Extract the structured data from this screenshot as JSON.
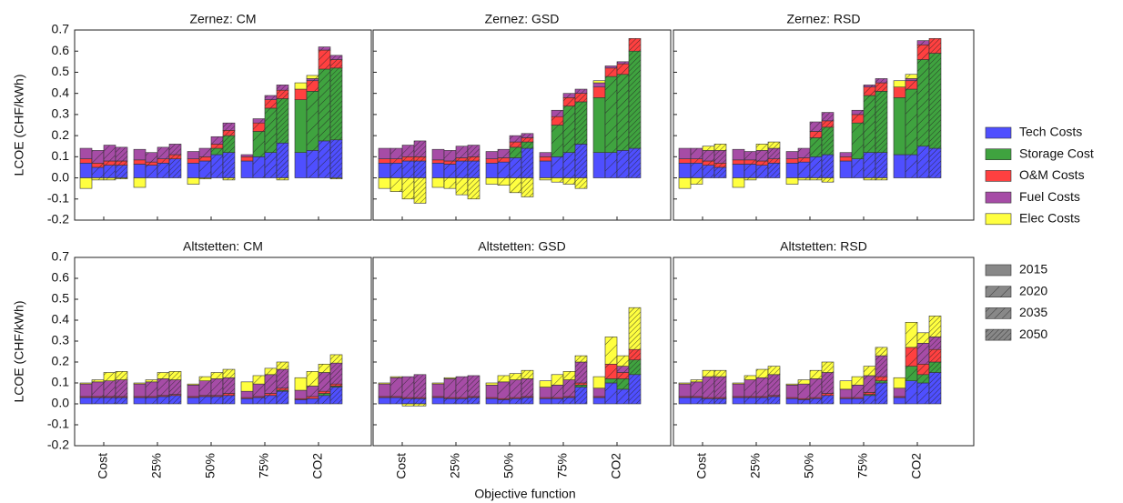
{
  "chart_data": {
    "type": "bar",
    "xlabel": "Objective function",
    "ylabel": "LCOE (CHF/kWh)",
    "categories": [
      "Cost",
      "25%",
      "50%",
      "75%",
      "CO2"
    ],
    "years": [
      "2015",
      "2020",
      "2035",
      "2050"
    ],
    "series": [
      {
        "name": "Tech Costs",
        "color": "#4f4fff"
      },
      {
        "name": "Storage Cost",
        "color": "#3fa33f"
      },
      {
        "name": "O&M Costs",
        "color": "#ff4040"
      },
      {
        "name": "Fuel Costs",
        "color": "#a64ca6"
      },
      {
        "name": "Elec Costs",
        "color": "#ffff40"
      }
    ],
    "ylim": [
      -0.2,
      0.7
    ],
    "yticks": [
      -0.2,
      -0.1,
      {
        "value": 0,
        "label": "0.0"
      },
      0.1,
      0.2,
      0.3,
      0.4,
      0.5,
      0.6,
      0.7
    ],
    "subplots": [
      {
        "title": "Zernez: CM",
        "values": [
          [
            [
              0.07,
              0.05,
              0.06,
              0.06
            ],
            [
              0.065,
              0.06,
              0.07,
              0.09
            ],
            [
              0.07,
              0.08,
              0.11,
              0.12
            ],
            [
              0.08,
              0.1,
              0.12,
              0.165
            ],
            [
              0.12,
              0.13,
              0.175,
              0.18
            ]
          ],
          [
            [
              0,
              0,
              0,
              0
            ],
            [
              0,
              0,
              0,
              0
            ],
            [
              0,
              0,
              0.03,
              0.08
            ],
            [
              0,
              0.12,
              0.21,
              0.21
            ],
            [
              0.25,
              0.28,
              0.34,
              0.34
            ]
          ],
          [
            [
              0.02,
              0.02,
              0.02,
              0.02
            ],
            [
              0.02,
              0.015,
              0.02,
              0.02
            ],
            [
              0.02,
              0.02,
              0.02,
              0.025
            ],
            [
              0.02,
              0.04,
              0.04,
              0.04
            ],
            [
              0.05,
              0.05,
              0.09,
              0.04
            ]
          ],
          [
            [
              0.05,
              0.06,
              0.075,
              0.065
            ],
            [
              0.05,
              0.045,
              0.055,
              0.05
            ],
            [
              0.035,
              0.04,
              0.035,
              0.035
            ],
            [
              0.01,
              0.02,
              0.02,
              0.025
            ],
            [
              0,
              0.01,
              0.015,
              0.02
            ]
          ],
          [
            [
              -0.05,
              -0.01,
              -0.01,
              -0.005
            ],
            [
              -0.045,
              0,
              0,
              0
            ],
            [
              -0.03,
              -0.005,
              0,
              -0.01
            ],
            [
              0,
              0,
              0,
              -0.01
            ],
            [
              0.03,
              0.015,
              0,
              -0.005
            ]
          ]
        ]
      },
      {
        "title": "Zernez: GSD",
        "values": [
          [
            [
              0.07,
              0.07,
              0.08,
              0.08
            ],
            [
              0.07,
              0.065,
              0.08,
              0.08
            ],
            [
              0.07,
              0.075,
              0.095,
              0.14
            ],
            [
              0.08,
              0.1,
              0.12,
              0.16
            ],
            [
              0.12,
              0.12,
              0.13,
              0.14
            ]
          ],
          [
            [
              0,
              0,
              0,
              0
            ],
            [
              0,
              0,
              0,
              0
            ],
            [
              0,
              0,
              0.05,
              0.03
            ],
            [
              0,
              0.15,
              0.22,
              0.2
            ],
            [
              0.26,
              0.36,
              0.36,
              0.46
            ]
          ],
          [
            [
              0.02,
              0.02,
              0.02,
              0.02
            ],
            [
              0.015,
              0.015,
              0.015,
              0.02
            ],
            [
              0.02,
              0.02,
              0.025,
              0.02
            ],
            [
              0.02,
              0.04,
              0.04,
              0.04
            ],
            [
              0.05,
              0.04,
              0.05,
              0.06
            ]
          ],
          [
            [
              0.05,
              0.05,
              0.055,
              0.075
            ],
            [
              0.05,
              0.05,
              0.055,
              0.055
            ],
            [
              0.035,
              0.04,
              0.03,
              0.02
            ],
            [
              0.02,
              0.03,
              0.02,
              0.02
            ],
            [
              0.02,
              0.01,
              0.01,
              0
            ]
          ],
          [
            [
              -0.05,
              -0.065,
              -0.1,
              -0.12
            ],
            [
              -0.045,
              -0.05,
              -0.08,
              -0.1
            ],
            [
              -0.03,
              -0.035,
              -0.07,
              -0.09
            ],
            [
              -0.01,
              -0.02,
              -0.03,
              -0.05
            ],
            [
              0.01,
              0,
              0,
              0
            ]
          ]
        ]
      },
      {
        "title": "Zernez: RSD",
        "values": [
          [
            [
              0.07,
              0.07,
              0.06,
              0.05
            ],
            [
              0.065,
              0.065,
              0.06,
              0.07
            ],
            [
              0.07,
              0.075,
              0.1,
              0.11
            ],
            [
              0.08,
              0.09,
              0.12,
              0.12
            ],
            [
              0.11,
              0.11,
              0.15,
              0.14
            ]
          ],
          [
            [
              0,
              0,
              0,
              0
            ],
            [
              0,
              0,
              0,
              0
            ],
            [
              0,
              0,
              0.09,
              0.13
            ],
            [
              0,
              0.17,
              0.27,
              0.29
            ],
            [
              0.27,
              0.31,
              0.41,
              0.45
            ]
          ],
          [
            [
              0.02,
              0.02,
              0.02,
              0.02
            ],
            [
              0.02,
              0.02,
              0.02,
              0.02
            ],
            [
              0.02,
              0.02,
              0.03,
              0.03
            ],
            [
              0.02,
              0.04,
              0.04,
              0.04
            ],
            [
              0.05,
              0.04,
              0.07,
              0.07
            ]
          ],
          [
            [
              0.05,
              0.05,
              0.05,
              0.06
            ],
            [
              0.05,
              0.04,
              0.05,
              0.05
            ],
            [
              0.035,
              0.045,
              0.045,
              0.04
            ],
            [
              0.02,
              0.02,
              0.01,
              0.02
            ],
            [
              0,
              0.01,
              0.02,
              0
            ]
          ],
          [
            [
              -0.05,
              -0.03,
              0.02,
              0.03
            ],
            [
              -0.045,
              -0.01,
              0.03,
              0.03
            ],
            [
              -0.03,
              -0.01,
              -0.01,
              -0.02
            ],
            [
              0,
              0,
              -0.01,
              -0.01
            ],
            [
              0.03,
              0.02,
              0,
              0
            ]
          ]
        ]
      },
      {
        "title": "Altstetten: CM",
        "values": [
          [
            [
              0.03,
              0.03,
              0.03,
              0.03
            ],
            [
              0.03,
              0.03,
              0.035,
              0.04
            ],
            [
              0.03,
              0.035,
              0.035,
              0.04
            ],
            [
              0.025,
              0.03,
              0.04,
              0.06
            ],
            [
              0.02,
              0.025,
              0.04,
              0.08
            ]
          ],
          [
            [
              0,
              0,
              0,
              0
            ],
            [
              0,
              0,
              0,
              0
            ],
            [
              0,
              0,
              0,
              0
            ],
            [
              0,
              0,
              0,
              0.005
            ],
            [
              0,
              0,
              0.01,
              0.005
            ]
          ],
          [
            [
              0.005,
              0.005,
              0.005,
              0.005
            ],
            [
              0.005,
              0.005,
              0.005,
              0.005
            ],
            [
              0.005,
              0.005,
              0.005,
              0.01
            ],
            [
              0.005,
              0.005,
              0.01,
              0.01
            ],
            [
              0.005,
              0.01,
              0.01,
              0.01
            ]
          ],
          [
            [
              0.06,
              0.07,
              0.075,
              0.08
            ],
            [
              0.06,
              0.07,
              0.08,
              0.07
            ],
            [
              0.055,
              0.07,
              0.08,
              0.075
            ],
            [
              0.03,
              0.06,
              0.09,
              0.09
            ],
            [
              0.04,
              0.05,
              0.09,
              0.1
            ]
          ],
          [
            [
              0.005,
              0.01,
              0.04,
              0.04
            ],
            [
              0.005,
              0.01,
              0.03,
              0.04
            ],
            [
              0.005,
              0.02,
              0.03,
              0.04
            ],
            [
              0.045,
              0.04,
              0.03,
              0.035
            ],
            [
              0.06,
              0.07,
              0.04,
              0.04
            ]
          ]
        ]
      },
      {
        "title": "Altstetten: GSD",
        "values": [
          [
            [
              0.03,
              0.03,
              0.025,
              0.025
            ],
            [
              0.03,
              0.025,
              0.025,
              0.03
            ],
            [
              0.025,
              0.02,
              0.025,
              0.03
            ],
            [
              0.025,
              0.025,
              0.03,
              0.08
            ],
            [
              0.03,
              0.1,
              0.07,
              0.14
            ]
          ],
          [
            [
              0,
              0,
              0,
              0
            ],
            [
              0,
              0,
              0,
              0
            ],
            [
              0,
              0,
              0,
              0
            ],
            [
              0,
              0,
              0,
              0.01
            ],
            [
              0,
              0.02,
              0.05,
              0.07
            ]
          ],
          [
            [
              0.005,
              0.005,
              0.005,
              0.005
            ],
            [
              0.005,
              0.005,
              0.005,
              0.005
            ],
            [
              0.005,
              0.005,
              0.005,
              0.005
            ],
            [
              0.005,
              0.005,
              0.005,
              0.01
            ],
            [
              0.005,
              0.07,
              0.03,
              0.05
            ]
          ],
          [
            [
              0.06,
              0.09,
              0.1,
              0.11
            ],
            [
              0.06,
              0.09,
              0.1,
              0.1
            ],
            [
              0.06,
              0.08,
              0.085,
              0.085
            ],
            [
              0.05,
              0.06,
              0.08,
              0.1
            ],
            [
              0.04,
              0,
              0.03,
              0
            ]
          ],
          [
            [
              0.005,
              0.005,
              -0.01,
              -0.01
            ],
            [
              0.005,
              0.005,
              0,
              0
            ],
            [
              0.01,
              0.03,
              0.03,
              0.04
            ],
            [
              0.03,
              0.05,
              0.04,
              0.03
            ],
            [
              0.055,
              0.13,
              0.05,
              0.2
            ]
          ]
        ]
      },
      {
        "title": "Altstetten: RSD",
        "values": [
          [
            [
              0.03,
              0.03,
              0.025,
              0.025
            ],
            [
              0.03,
              0.03,
              0.03,
              0.035
            ],
            [
              0.025,
              0.02,
              0.025,
              0.04
            ],
            [
              0.025,
              0.025,
              0.04,
              0.1
            ],
            [
              0.03,
              0.11,
              0.1,
              0.15
            ]
          ],
          [
            [
              0,
              0,
              0,
              0
            ],
            [
              0,
              0,
              0,
              0
            ],
            [
              0,
              0,
              0,
              0
            ],
            [
              0,
              0,
              0.005,
              0.01
            ],
            [
              0,
              0.07,
              0.04,
              0.05
            ]
          ],
          [
            [
              0.005,
              0.005,
              0.005,
              0.005
            ],
            [
              0.005,
              0.005,
              0.005,
              0.005
            ],
            [
              0.005,
              0.005,
              0.005,
              0.01
            ],
            [
              0.005,
              0.005,
              0.01,
              0.02
            ],
            [
              0.005,
              0.09,
              0.05,
              0.06
            ]
          ],
          [
            [
              0.06,
              0.07,
              0.1,
              0.1
            ],
            [
              0.06,
              0.08,
              0.09,
              0.1
            ],
            [
              0.06,
              0.07,
              0.09,
              0.1
            ],
            [
              0.04,
              0.06,
              0.08,
              0.1
            ],
            [
              0.04,
              0,
              0.1,
              0.06
            ]
          ],
          [
            [
              0.005,
              0.01,
              0.03,
              0.03
            ],
            [
              0.005,
              0.02,
              0.04,
              0.04
            ],
            [
              0.005,
              0.02,
              0.04,
              0.05
            ],
            [
              0.04,
              0.04,
              0.045,
              0.04
            ],
            [
              0.05,
              0.12,
              0.05,
              0.1
            ]
          ]
        ]
      }
    ]
  }
}
